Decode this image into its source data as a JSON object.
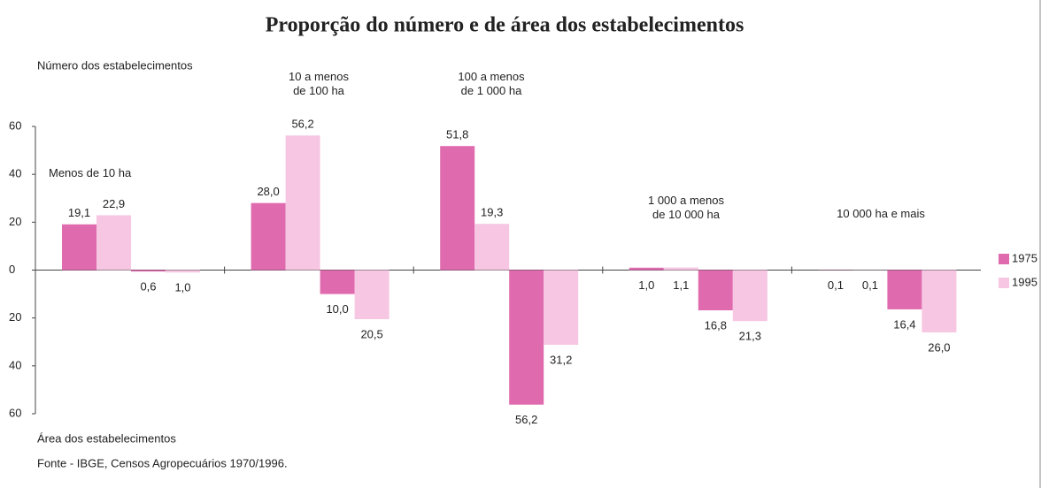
{
  "chart_data": {
    "type": "diverging_bar",
    "title": "Proporção do número e de área dos estabelecimentos",
    "y_label_top": "Número dos estabelecimentos",
    "y_label_bottom": "Área dos estabelecimentos",
    "source": "Fonte - IBGE, Censos Agropecuários 1970/1996.",
    "categories": [
      "Menos de 10 ha",
      "10 a menos\nde 100 ha",
      "100 a menos\nde 1 000 ha",
      "1 000 a menos\nde 10 000 ha",
      "10 000 ha e mais"
    ],
    "series": [
      {
        "name": "1975",
        "color": "#e06aae",
        "values": [
          19.1,
          28.0,
          51.8,
          1.0,
          0.1
        ],
        "value_labels": [
          "19,1",
          "28,0",
          "51,8",
          "1,0",
          "0,1"
        ],
        "area_values": [
          -0.6,
          -10.0,
          -56.2,
          -16.8,
          -16.4
        ],
        "area_value_labels": [
          "0,6",
          "10,0",
          "56,2",
          "16,8",
          "16,4"
        ]
      },
      {
        "name": "1995",
        "color": "#f6c6e2",
        "values": [
          22.9,
          56.2,
          19.3,
          1.1,
          0.1
        ],
        "value_labels": [
          "22,9",
          "56,2",
          "19,3",
          "1,1",
          "0,1"
        ],
        "area_values": [
          -1.0,
          -20.5,
          -31.2,
          -21.3,
          -26.0
        ],
        "area_value_labels": [
          "1,0",
          "20,5",
          "31,2",
          "21,3",
          "26,0"
        ]
      }
    ],
    "ylim": [
      -60,
      60
    ],
    "yticks": [
      {
        "value": -60,
        "label": "60"
      },
      {
        "value": -40,
        "label": "40"
      },
      {
        "value": -20,
        "label": "20"
      },
      0,
      20,
      40,
      60
    ],
    "legend": "right"
  }
}
